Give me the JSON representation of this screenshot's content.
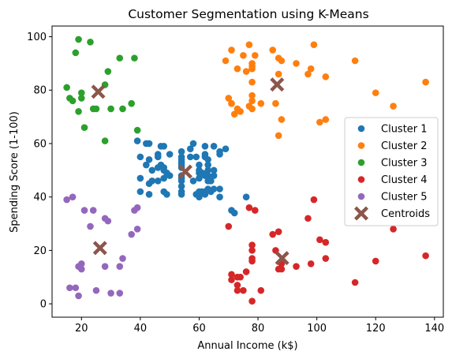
{
  "chart_data": {
    "type": "scatter",
    "title": "Customer Segmentation using K-Means",
    "xlabel": "Annual Income (k$)",
    "ylabel": "Spending Score (1-100)",
    "xlim": [
      10,
      143
    ],
    "ylim": [
      -5,
      104
    ],
    "xticks": [
      20,
      40,
      60,
      80,
      100,
      120,
      140
    ],
    "yticks": [
      0,
      20,
      40,
      60,
      80,
      100
    ],
    "grid": false,
    "legend_position": "center-right",
    "series": [
      {
        "name": "Cluster 1",
        "color": "#1f77b4",
        "marker": "circle",
        "points": [
          [
            39,
            61
          ],
          [
            40,
            55
          ],
          [
            40,
            47
          ],
          [
            40,
            42
          ],
          [
            42,
            52
          ],
          [
            42,
            60
          ],
          [
            43,
            60
          ],
          [
            43,
            54
          ],
          [
            43,
            45
          ],
          [
            43,
            41
          ],
          [
            44,
            50
          ],
          [
            44,
            46
          ],
          [
            46,
            51
          ],
          [
            46,
            46
          ],
          [
            46,
            56
          ],
          [
            46,
            55
          ],
          [
            47,
            52
          ],
          [
            47,
            59
          ],
          [
            48,
            51
          ],
          [
            48,
            59
          ],
          [
            48,
            50
          ],
          [
            48,
            47
          ],
          [
            48,
            42
          ],
          [
            49,
            49
          ],
          [
            49,
            41
          ],
          [
            50,
            48
          ],
          [
            50,
            56
          ],
          [
            54,
            47
          ],
          [
            54,
            54
          ],
          [
            54,
            53
          ],
          [
            54,
            48
          ],
          [
            54,
            52
          ],
          [
            54,
            42
          ],
          [
            54,
            51
          ],
          [
            54,
            55
          ],
          [
            54,
            41
          ],
          [
            54,
            44
          ],
          [
            54,
            57
          ],
          [
            54,
            46
          ],
          [
            57,
            58
          ],
          [
            57,
            55
          ],
          [
            58,
            60
          ],
          [
            58,
            46
          ],
          [
            59,
            55
          ],
          [
            59,
            41
          ],
          [
            60,
            49
          ],
          [
            60,
            40
          ],
          [
            60,
            42
          ],
          [
            60,
            52
          ],
          [
            60,
            47
          ],
          [
            60,
            50
          ],
          [
            61,
            42
          ],
          [
            61,
            49
          ],
          [
            62,
            41
          ],
          [
            62,
            48
          ],
          [
            62,
            59
          ],
          [
            62,
            55
          ],
          [
            62,
            56
          ],
          [
            62,
            42
          ],
          [
            63,
            50
          ],
          [
            63,
            46
          ],
          [
            63,
            43
          ],
          [
            63,
            48
          ],
          [
            63,
            52
          ],
          [
            63,
            54
          ],
          [
            64,
            42
          ],
          [
            64,
            46
          ],
          [
            65,
            48
          ],
          [
            65,
            50
          ],
          [
            65,
            43
          ],
          [
            65,
            59
          ],
          [
            67,
            43
          ],
          [
            67,
            57
          ],
          [
            67,
            56
          ],
          [
            67,
            40
          ],
          [
            69,
            58
          ],
          [
            71,
            35
          ],
          [
            72,
            34
          ],
          [
            76,
            40
          ]
        ]
      },
      {
        "name": "Cluster 2",
        "color": "#ff7f0e",
        "marker": "circle",
        "points": [
          [
            69,
            91
          ],
          [
            70,
            77
          ],
          [
            71,
            95
          ],
          [
            71,
            75
          ],
          [
            71,
            75
          ],
          [
            72,
            71
          ],
          [
            73,
            88
          ],
          [
            73,
            73
          ],
          [
            74,
            72
          ],
          [
            75,
            93
          ],
          [
            76,
            87
          ],
          [
            77,
            97
          ],
          [
            77,
            74
          ],
          [
            78,
            90
          ],
          [
            78,
            88
          ],
          [
            78,
            76
          ],
          [
            78,
            89
          ],
          [
            78,
            78
          ],
          [
            78,
            73
          ],
          [
            78,
            83
          ],
          [
            79,
            93
          ],
          [
            81,
            75
          ],
          [
            85,
            95
          ],
          [
            86,
            75
          ],
          [
            87,
            63
          ],
          [
            87,
            92
          ],
          [
            87,
            86
          ],
          [
            88,
            69
          ],
          [
            88,
            91
          ],
          [
            93,
            90
          ],
          [
            97,
            86
          ],
          [
            98,
            88
          ],
          [
            99,
            97
          ],
          [
            101,
            68
          ],
          [
            103,
            85
          ],
          [
            103,
            69
          ],
          [
            113,
            91
          ],
          [
            120,
            79
          ],
          [
            126,
            74
          ],
          [
            137,
            83
          ]
        ]
      },
      {
        "name": "Cluster 3",
        "color": "#2ca02c",
        "marker": "circle",
        "points": [
          [
            15,
            81
          ],
          [
            16,
            77
          ],
          [
            17,
            76
          ],
          [
            18,
            94
          ],
          [
            19,
            72
          ],
          [
            19,
            99
          ],
          [
            20,
            77
          ],
          [
            20,
            79
          ],
          [
            21,
            66
          ],
          [
            23,
            98
          ],
          [
            24,
            73
          ],
          [
            25,
            73
          ],
          [
            28,
            82
          ],
          [
            28,
            61
          ],
          [
            29,
            87
          ],
          [
            30,
            73
          ],
          [
            33,
            92
          ],
          [
            34,
            73
          ],
          [
            37,
            75
          ],
          [
            38,
            92
          ],
          [
            39,
            65
          ]
        ]
      },
      {
        "name": "Cluster 4",
        "color": "#d62728",
        "marker": "circle",
        "points": [
          [
            70,
            29
          ],
          [
            71,
            11
          ],
          [
            71,
            9
          ],
          [
            73,
            5
          ],
          [
            73,
            7
          ],
          [
            73,
            10
          ],
          [
            74,
            10
          ],
          [
            75,
            5
          ],
          [
            76,
            12
          ],
          [
            77,
            36
          ],
          [
            78,
            1
          ],
          [
            78,
            20
          ],
          [
            78,
            16
          ],
          [
            78,
            22
          ],
          [
            78,
            17
          ],
          [
            79,
            35
          ],
          [
            81,
            5
          ],
          [
            85,
            26
          ],
          [
            86,
            20
          ],
          [
            87,
            27
          ],
          [
            87,
            13
          ],
          [
            88,
            13
          ],
          [
            88,
            15
          ],
          [
            93,
            14
          ],
          [
            97,
            32
          ],
          [
            98,
            15
          ],
          [
            99,
            39
          ],
          [
            101,
            24
          ],
          [
            103,
            17
          ],
          [
            103,
            23
          ],
          [
            113,
            8
          ],
          [
            120,
            16
          ],
          [
            126,
            28
          ],
          [
            137,
            18
          ]
        ]
      },
      {
        "name": "Cluster 5",
        "color": "#9467bd",
        "marker": "circle",
        "points": [
          [
            15,
            39
          ],
          [
            16,
            6
          ],
          [
            17,
            40
          ],
          [
            18,
            6
          ],
          [
            19,
            3
          ],
          [
            19,
            14
          ],
          [
            20,
            15
          ],
          [
            20,
            13
          ],
          [
            21,
            35
          ],
          [
            23,
            29
          ],
          [
            24,
            35
          ],
          [
            25,
            5
          ],
          [
            28,
            14
          ],
          [
            28,
            32
          ],
          [
            29,
            31
          ],
          [
            30,
            4
          ],
          [
            33,
            4
          ],
          [
            33,
            14
          ],
          [
            34,
            17
          ],
          [
            37,
            26
          ],
          [
            38,
            35
          ],
          [
            39,
            36
          ],
          [
            39,
            28
          ]
        ]
      },
      {
        "name": "Centroids",
        "color": "#8c564b",
        "marker": "x",
        "points": [
          [
            55.3,
            49.5
          ],
          [
            86.5,
            82.1
          ],
          [
            25.7,
            79.4
          ],
          [
            88.2,
            17.1
          ],
          [
            26.3,
            20.9
          ]
        ]
      }
    ]
  }
}
